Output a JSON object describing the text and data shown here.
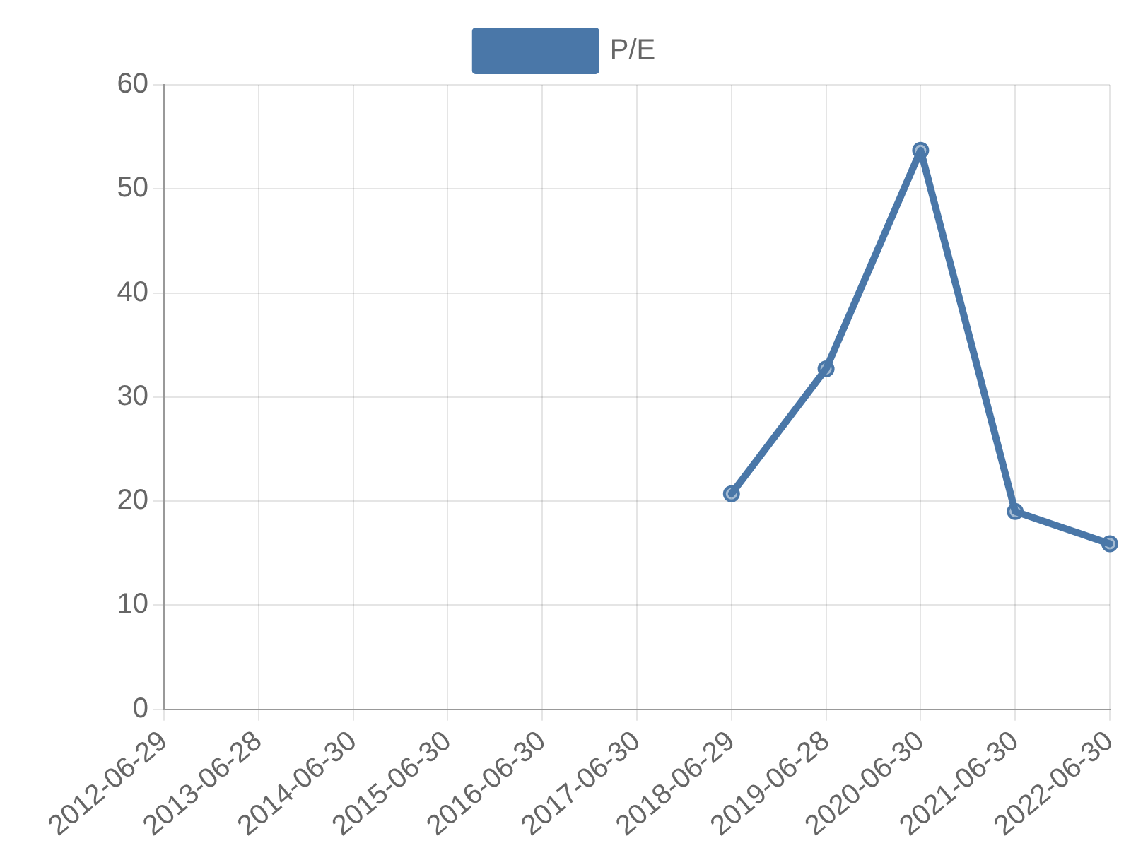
{
  "chart_data": {
    "type": "line",
    "categories": [
      "2012-06-29",
      "2013-06-28",
      "2014-06-30",
      "2015-06-30",
      "2016-06-30",
      "2017-06-30",
      "2018-06-29",
      "2019-06-28",
      "2020-06-30",
      "2021-06-30",
      "2022-06-30"
    ],
    "series": [
      {
        "name": "P/E",
        "color": "#4a77a8",
        "values": [
          null,
          null,
          null,
          null,
          null,
          null,
          20.7,
          32.7,
          53.7,
          19.0,
          15.9
        ]
      }
    ],
    "ylim": [
      0,
      60
    ],
    "yticks": [
      0,
      10,
      20,
      30,
      40,
      50,
      60
    ],
    "grid": true,
    "legend": "top",
    "marker": "circle"
  }
}
